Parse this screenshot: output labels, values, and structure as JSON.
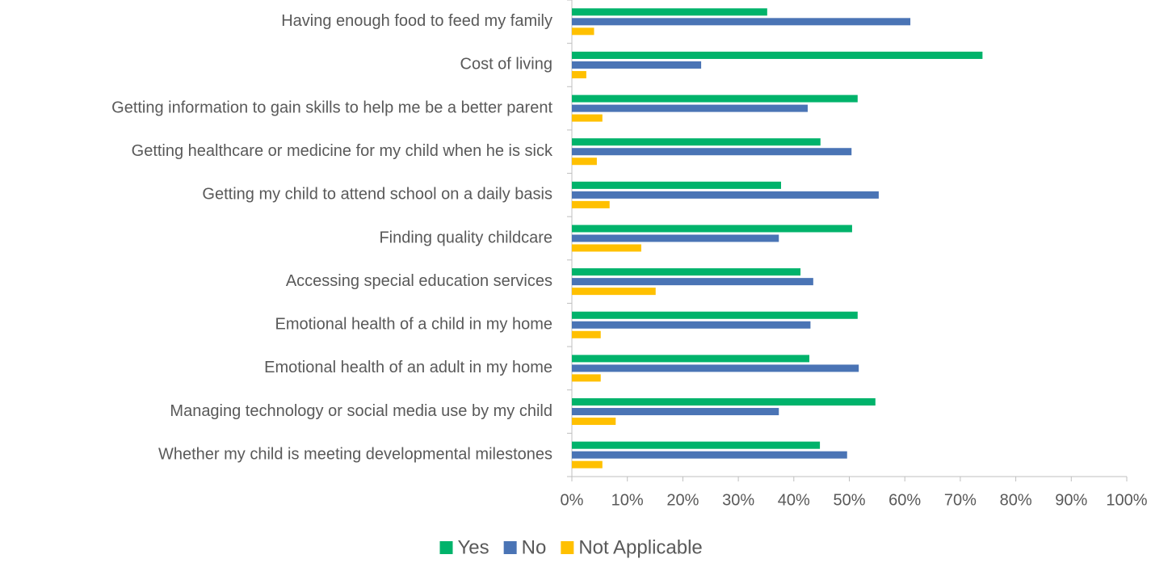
{
  "chart_data": {
    "type": "bar",
    "orientation": "horizontal",
    "categories": [
      "Having enough food to feed my family",
      "Cost of living",
      "Getting information to gain skills to help me be a better parent",
      "Getting healthcare or medicine for my child when he is sick",
      "Getting my child to attend school on a daily basis",
      "Finding quality childcare",
      "Accessing special education services",
      "Emotional health of a child in my home",
      "Emotional health of an adult in my home",
      "Managing technology or social media use by my child",
      "Whether my child is meeting developmental milestones"
    ],
    "series": [
      {
        "name": "Yes",
        "color": "#00b36b",
        "values": [
          35.2,
          74,
          51.5,
          44.8,
          37.7,
          50.5,
          41.2,
          51.5,
          42.8,
          54.7,
          44.7
        ]
      },
      {
        "name": "No",
        "color": "#4a74b5",
        "values": [
          61,
          23.3,
          42.5,
          50.4,
          55.3,
          37.3,
          43.5,
          43,
          51.7,
          37.3,
          49.6
        ]
      },
      {
        "name": "Not Applicable",
        "color": "#ffc000",
        "values": [
          4,
          2.6,
          5.5,
          4.5,
          6.8,
          12.5,
          15.1,
          5.2,
          5.2,
          7.9,
          5.5
        ]
      }
    ],
    "xlim": [
      0,
      100
    ],
    "xticks": [
      {
        "value": 0,
        "label": "0%"
      },
      {
        "value": 10,
        "label": "10%"
      },
      {
        "value": 20,
        "label": "20%"
      },
      {
        "value": 30,
        "label": "30%"
      },
      {
        "value": 40,
        "label": "40%"
      },
      {
        "value": 50,
        "label": "50%"
      },
      {
        "value": 60,
        "label": "60%"
      },
      {
        "value": 70,
        "label": "70%"
      },
      {
        "value": 80,
        "label": "80%"
      },
      {
        "value": 90,
        "label": "90%"
      },
      {
        "value": 100,
        "label": "100%"
      }
    ],
    "legend": "bottom",
    "grid": false
  }
}
